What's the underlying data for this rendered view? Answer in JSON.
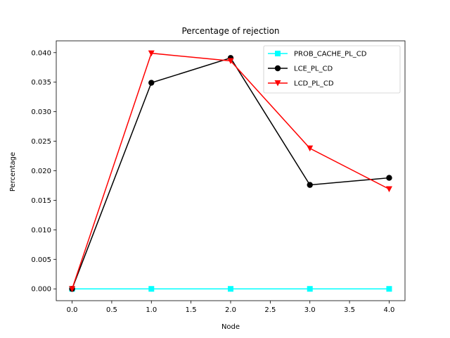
{
  "chart_data": {
    "type": "line",
    "title": "Percentage of rejection",
    "xlabel": "Node",
    "ylabel": "Percentage",
    "x": [
      0,
      1,
      2,
      3,
      4
    ],
    "xlim": [
      -0.2,
      4.2
    ],
    "ylim": [
      -0.002,
      0.042
    ],
    "xticks": [
      0,
      0.5,
      1,
      1.5,
      2,
      2.5,
      3,
      3.5,
      4
    ],
    "xtick_labels": [
      "0.0",
      "0.5",
      "1.0",
      "1.5",
      "2.0",
      "2.5",
      "3.0",
      "3.5",
      "4.0"
    ],
    "yticks": [
      0,
      0.005,
      0.01,
      0.015,
      0.02,
      0.025,
      0.03,
      0.035,
      0.04
    ],
    "ytick_labels": [
      "0.000",
      "0.005",
      "0.010",
      "0.015",
      "0.020",
      "0.025",
      "0.030",
      "0.035",
      "0.040"
    ],
    "grid": false,
    "legend_position": "top-right",
    "series": [
      {
        "name": "PROB_CACHE_PL_CD",
        "color": "#00ffff",
        "marker": "square",
        "values": [
          0,
          0,
          0,
          0,
          0
        ]
      },
      {
        "name": "LCE_PL_CD",
        "color": "#000000",
        "marker": "circle",
        "values": [
          0,
          0.0349,
          0.0391,
          0.0176,
          0.0188
        ]
      },
      {
        "name": "LCD_PL_CD",
        "color": "#ff0000",
        "marker": "triangle-down",
        "values": [
          0,
          0.0399,
          0.0386,
          0.0238,
          0.0169
        ]
      }
    ]
  }
}
